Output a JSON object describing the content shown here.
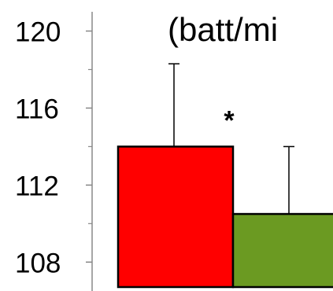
{
  "chart_data": {
    "type": "bar",
    "title": "(batt/mi",
    "xlabel": "",
    "ylabel": "",
    "ylim": [
      106.5,
      121
    ],
    "yticks": [
      108,
      112,
      116,
      120
    ],
    "minor_ticks": [
      110,
      114,
      118
    ],
    "categories": [
      "",
      ""
    ],
    "values": [
      114,
      110.5
    ],
    "errors": [
      4.3,
      3.5
    ],
    "colors": [
      "#ff0000",
      "#6b9a22"
    ],
    "annotations": [
      "*",
      ""
    ],
    "grid": false,
    "legend": "none"
  }
}
